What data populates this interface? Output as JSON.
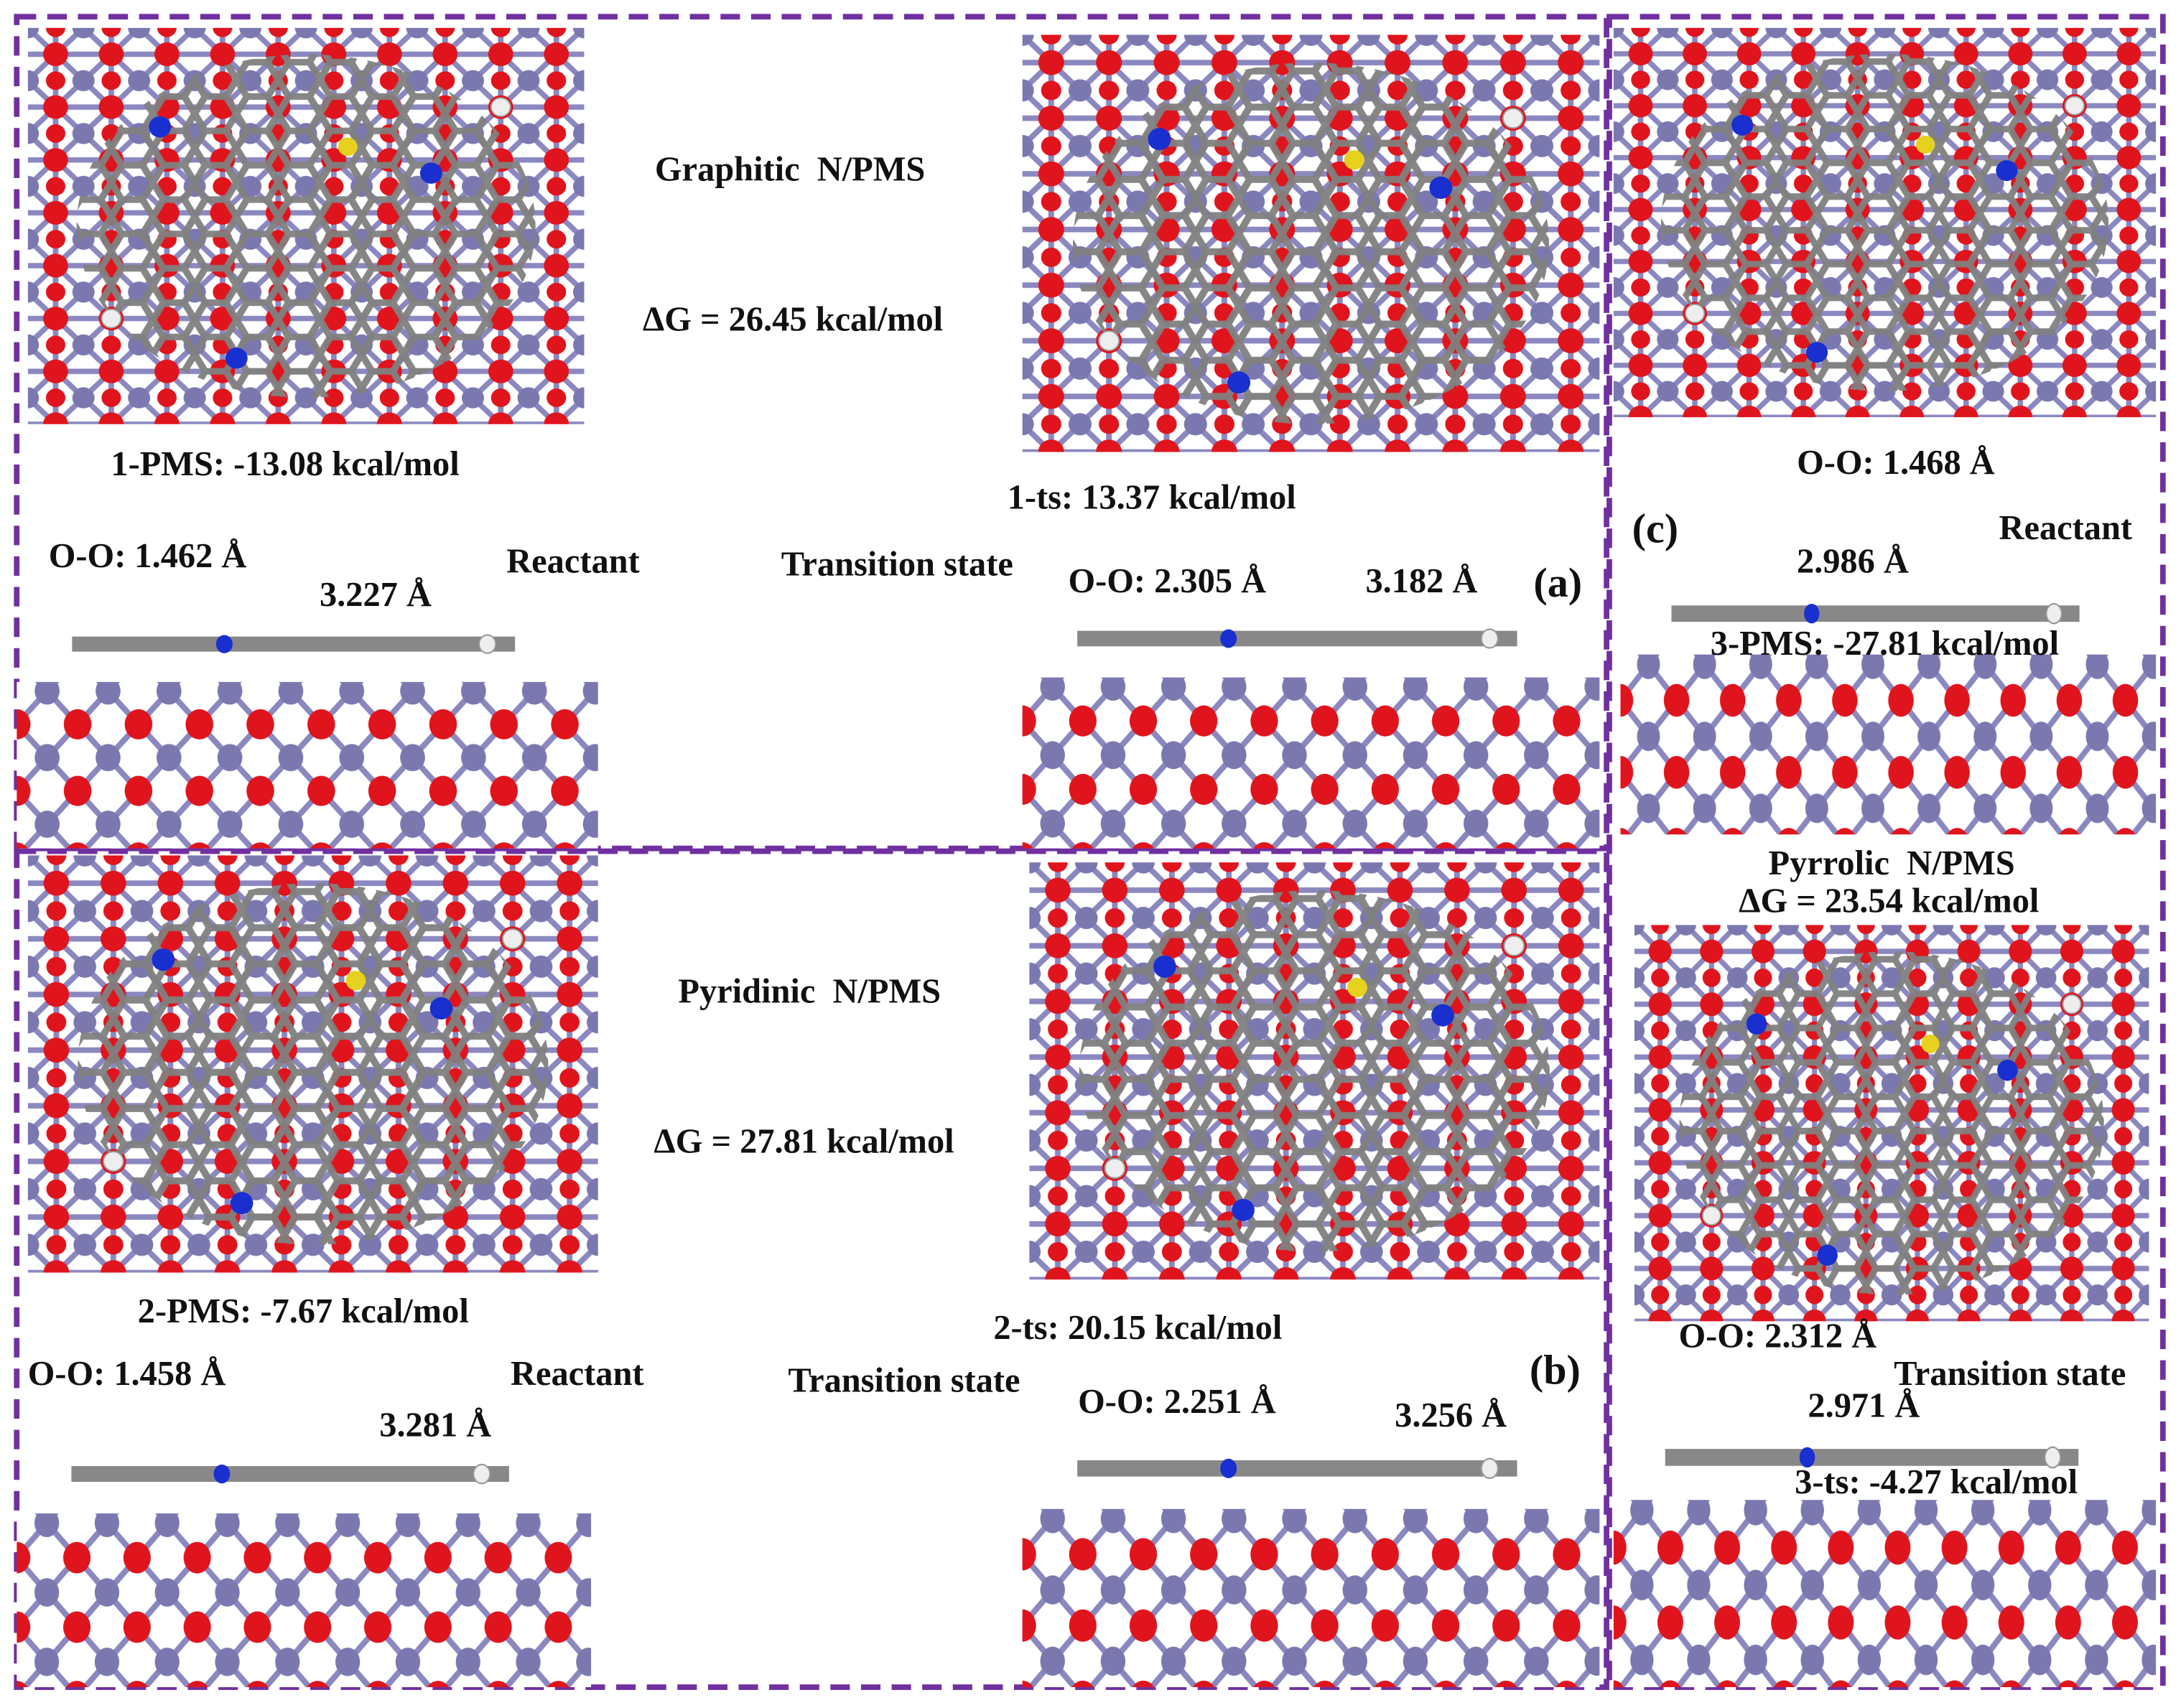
{
  "panels": [
    {
      "label": "(a)",
      "title": "Graphitic  N/PMS",
      "delta_g": "ΔG = 26.45 kcal/mol",
      "reactant": {
        "energy": "1-PMS: -13.08 kcal/mol",
        "oo": "O-O: 1.462 Å",
        "distance": "3.227 Å",
        "caption": "Reactant"
      },
      "transition": {
        "energy": "1-ts: 13.37 kcal/mol",
        "oo": "O-O: 2.305 Å",
        "distance": "3.182 Å",
        "caption": "Transition state"
      }
    },
    {
      "label": "(b)",
      "title": "Pyridinic  N/PMS",
      "delta_g": "ΔG = 27.81 kcal/mol",
      "reactant": {
        "energy": "2-PMS: -7.67 kcal/mol",
        "oo": "O-O: 1.458 Å",
        "distance": "3.281 Å",
        "caption": "Reactant"
      },
      "transition": {
        "energy": "2-ts: 20.15 kcal/mol",
        "oo": "O-O: 2.251 Å",
        "distance": "3.256 Å",
        "caption": "Transition state"
      }
    },
    {
      "label": "(c)",
      "title": "Pyrrolic  N/PMS",
      "delta_g": "ΔG = 23.54 kcal/mol",
      "reactant": {
        "energy": "3-PMS: -27.81 kcal/mol",
        "oo": "O-O: 1.468 Å",
        "distance": "2.986 Å",
        "caption": "Reactant"
      },
      "transition": {
        "energy": "3-ts: -4.27 kcal/mol",
        "oo": "O-O: 2.312 Å",
        "distance": "2.971 Å",
        "caption": "Transition state"
      }
    }
  ]
}
